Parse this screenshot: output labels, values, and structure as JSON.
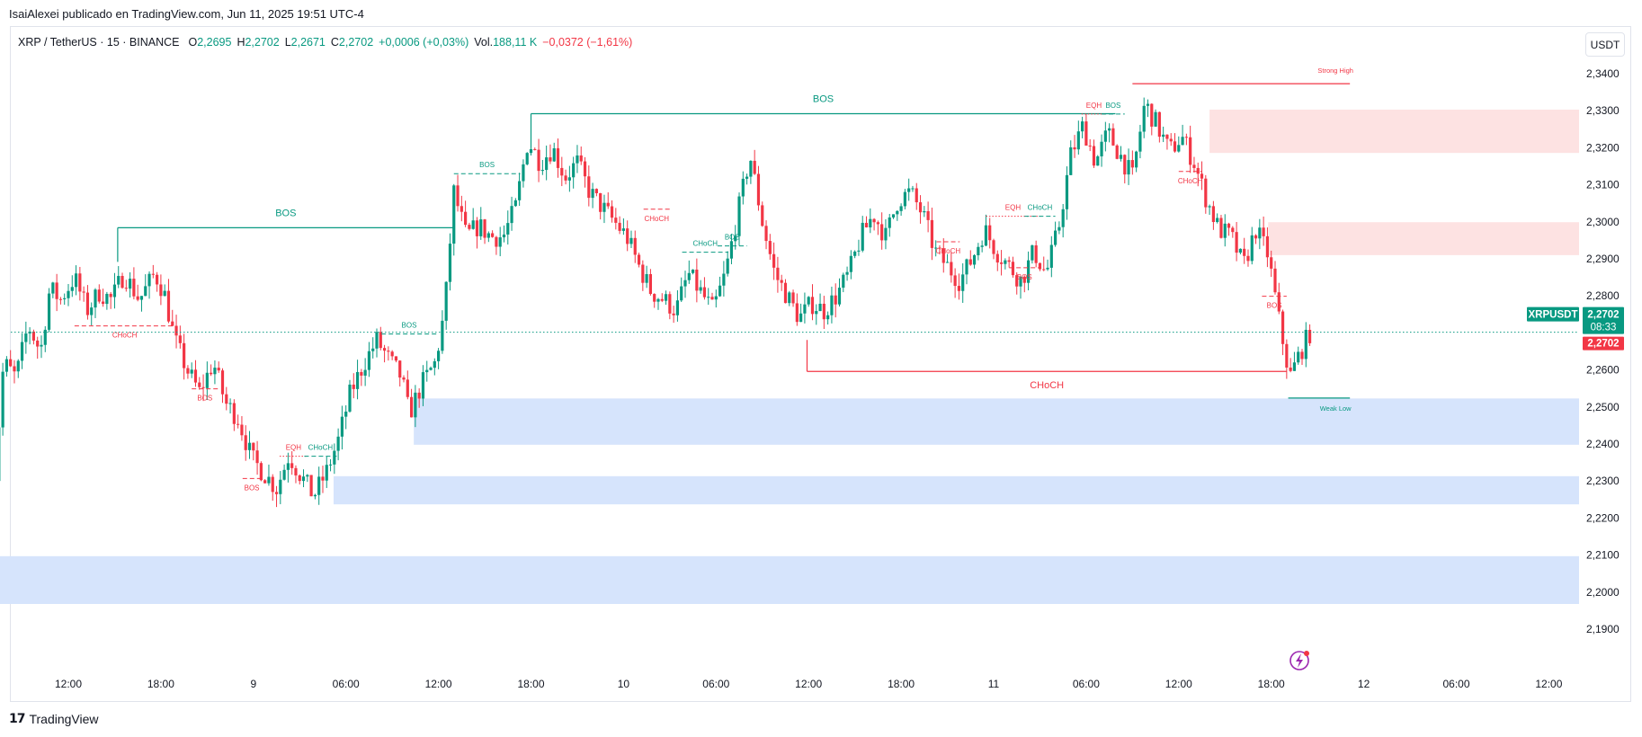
{
  "header": {
    "publish_line": "IsaiAlexei publicado en TradingView.com, Jun 11, 2025 19:51 UTC-4"
  },
  "legend": {
    "symbol": "XRP / TetherUS · 15 · BINANCE",
    "open_label": "O",
    "open": "2,2695",
    "high_label": "H",
    "high": "2,2702",
    "low_label": "L",
    "low": "2,2671",
    "close_label": "C",
    "close": "2,2702",
    "change": "+0,0006 (+0,03%)",
    "vol_label": "Vol.",
    "vol": "188,11 K",
    "day_change": "−0,0372 (−1,61%)"
  },
  "unit_button": "USDT",
  "footer": {
    "brand": "TradingView",
    "brand_mark": "17"
  },
  "price_tags": {
    "symbol_tag": "XRPUSDT",
    "last_price": "2,2702",
    "countdown": "08:33",
    "bid_price": "2,2702"
  },
  "colors": {
    "up": "#089981",
    "down": "#f23645",
    "demand_zone": "#d6e4fc",
    "supply_zone": "#fde2e2",
    "grid": "#ffffff"
  },
  "chart_data": {
    "type": "candlestick",
    "symbol": "XRPUSDT",
    "interval": "15",
    "y_axis": {
      "ticks": [
        "2,3400",
        "2,3300",
        "2,3200",
        "2,3100",
        "2,3000",
        "2,2900",
        "2,2800",
        "2,2600",
        "2,2500",
        "2,2400",
        "2,2300",
        "2,2200",
        "2,2100",
        "2,2000",
        "2,1900"
      ],
      "tick_values": [
        2.34,
        2.33,
        2.32,
        2.31,
        2.3,
        2.29,
        2.28,
        2.26,
        2.25,
        2.24,
        2.23,
        2.22,
        2.21,
        2.2,
        2.19
      ],
      "range": [
        2.178,
        2.355
      ]
    },
    "x_axis": {
      "ticks": [
        "12:00",
        "18:00",
        "9",
        "06:00",
        "12:00",
        "18:00",
        "10",
        "06:00",
        "12:00",
        "18:00",
        "11",
        "06:00",
        "12:00",
        "18:00",
        "12",
        "06:00",
        "12:00"
      ],
      "tick_hours": [
        12,
        18,
        24,
        30,
        36,
        42,
        48,
        54,
        60,
        66,
        72,
        78,
        84,
        90,
        96,
        102,
        108
      ],
      "range_hours": [
        7,
        111.5
      ]
    },
    "path_points": [
      [
        7.0,
        2.218
      ],
      [
        7.8,
        2.262
      ],
      [
        8.6,
        2.258
      ],
      [
        9.4,
        2.272
      ],
      [
        10.2,
        2.265
      ],
      [
        10.8,
        2.282
      ],
      [
        11.5,
        2.279
      ],
      [
        12.4,
        2.285
      ],
      [
        13.2,
        2.276
      ],
      [
        14.0,
        2.281
      ],
      [
        14.8,
        2.279
      ],
      [
        15.6,
        2.286
      ],
      [
        16.6,
        2.279
      ],
      [
        17.6,
        2.286
      ],
      [
        18.2,
        2.281
      ],
      [
        18.9,
        2.268
      ],
      [
        19.7,
        2.26
      ],
      [
        20.5,
        2.254
      ],
      [
        21.4,
        2.262
      ],
      [
        22.2,
        2.251
      ],
      [
        23.0,
        2.247
      ],
      [
        23.9,
        2.236
      ],
      [
        24.7,
        2.232
      ],
      [
        25.5,
        2.228
      ],
      [
        26.3,
        2.237
      ],
      [
        27.0,
        2.232
      ],
      [
        27.9,
        2.226
      ],
      [
        28.7,
        2.232
      ],
      [
        29.5,
        2.241
      ],
      [
        30.3,
        2.254
      ],
      [
        31.2,
        2.262
      ],
      [
        32.0,
        2.268
      ],
      [
        32.9,
        2.262
      ],
      [
        33.6,
        2.258
      ],
      [
        34.1,
        2.248
      ],
      [
        34.9,
        2.256
      ],
      [
        35.8,
        2.262
      ],
      [
        36.4,
        2.276
      ],
      [
        37.0,
        2.308
      ],
      [
        37.8,
        2.296
      ],
      [
        38.6,
        2.299
      ],
      [
        39.4,
        2.296
      ],
      [
        40.2,
        2.296
      ],
      [
        41.0,
        2.304
      ],
      [
        41.8,
        2.322
      ],
      [
        42.6,
        2.316
      ],
      [
        43.4,
        2.32
      ],
      [
        44.2,
        2.312
      ],
      [
        45.0,
        2.316
      ],
      [
        45.8,
        2.308
      ],
      [
        46.6,
        2.304
      ],
      [
        47.4,
        2.3
      ],
      [
        48.2,
        2.296
      ],
      [
        49.0,
        2.288
      ],
      [
        49.8,
        2.281
      ],
      [
        50.6,
        2.279
      ],
      [
        51.4,
        2.276
      ],
      [
        52.2,
        2.286
      ],
      [
        53.0,
        2.281
      ],
      [
        53.8,
        2.276
      ],
      [
        54.6,
        2.286
      ],
      [
        55.4,
        2.302
      ],
      [
        56.2,
        2.318
      ],
      [
        57.0,
        2.3
      ],
      [
        57.8,
        2.286
      ],
      [
        58.6,
        2.28
      ],
      [
        59.4,
        2.274
      ],
      [
        60.2,
        2.278
      ],
      [
        61.0,
        2.276
      ],
      [
        61.8,
        2.28
      ],
      [
        62.6,
        2.286
      ],
      [
        63.4,
        2.296
      ],
      [
        64.2,
        2.302
      ],
      [
        65.0,
        2.296
      ],
      [
        65.8,
        2.306
      ],
      [
        66.6,
        2.308
      ],
      [
        67.4,
        2.302
      ],
      [
        68.2,
        2.292
      ],
      [
        69.0,
        2.288
      ],
      [
        69.8,
        2.284
      ],
      [
        70.6,
        2.29
      ],
      [
        71.4,
        2.298
      ],
      [
        72.2,
        2.292
      ],
      [
        73.0,
        2.288
      ],
      [
        73.8,
        2.284
      ],
      [
        74.6,
        2.292
      ],
      [
        75.4,
        2.286
      ],
      [
        76.2,
        2.298
      ],
      [
        77.0,
        2.318
      ],
      [
        77.8,
        2.326
      ],
      [
        78.6,
        2.316
      ],
      [
        79.4,
        2.324
      ],
      [
        80.2,
        2.318
      ],
      [
        81.0,
        2.312
      ],
      [
        81.8,
        2.332
      ],
      [
        82.6,
        2.326
      ],
      [
        83.4,
        2.319
      ],
      [
        84.2,
        2.323
      ],
      [
        85.0,
        2.316
      ],
      [
        85.8,
        2.306
      ],
      [
        86.6,
        2.298
      ],
      [
        87.4,
        2.296
      ],
      [
        88.2,
        2.288
      ],
      [
        89.0,
        2.298
      ],
      [
        89.8,
        2.291
      ],
      [
        90.6,
        2.271
      ],
      [
        91.2,
        2.258
      ],
      [
        91.9,
        2.265
      ],
      [
        92.5,
        2.27
      ]
    ],
    "zones": [
      {
        "kind": "demand",
        "x0": 34.4,
        "y_top": 2.2523,
        "y_bot": 2.2398
      },
      {
        "kind": "demand",
        "x0": 29.2,
        "y_top": 2.2313,
        "y_bot": 2.2237
      },
      {
        "kind": "demand",
        "x0": 7.0,
        "y_top": 2.2097,
        "y_bot": 2.1968
      },
      {
        "kind": "supply",
        "x0": 86.0,
        "y_top": 2.3303,
        "y_bot": 2.3186
      },
      {
        "kind": "supply",
        "x0": 89.8,
        "y_top": 2.2999,
        "y_bot": 2.291
      }
    ],
    "structure": [
      {
        "label": "BOS",
        "color": "up",
        "style": "solid",
        "x0": 15.2,
        "x1": 37.0,
        "y": 2.2984,
        "size": "large"
      },
      {
        "label": "BOS",
        "color": "up",
        "style": "solid",
        "x0": 42.0,
        "x1": 79.9,
        "y": 2.3292,
        "size": "large"
      },
      {
        "label": "CHoCH",
        "color": "down",
        "style": "solid",
        "x0": 59.9,
        "x1": 91.0,
        "y": 2.2596,
        "size": "large"
      },
      {
        "label": "BOS",
        "color": "up",
        "style": "dashed",
        "x0": 37.0,
        "x1": 41.3,
        "y": 2.313,
        "size": "small"
      },
      {
        "label": "BOS",
        "color": "up",
        "style": "dashed",
        "x0": 32.3,
        "x1": 35.9,
        "y": 2.2697,
        "size": "small"
      },
      {
        "label": "CHoCH",
        "color": "down",
        "style": "dashed",
        "x0": 12.4,
        "x1": 18.9,
        "y": 2.2719,
        "size": "small"
      },
      {
        "label": "BOS",
        "color": "down",
        "style": "dashed",
        "x0": 20.0,
        "x1": 21.7,
        "y": 2.2549,
        "size": "small"
      },
      {
        "label": "BOS",
        "color": "down",
        "style": "dashed",
        "x0": 23.3,
        "x1": 24.5,
        "y": 2.2307,
        "size": "small"
      },
      {
        "label": "EQH",
        "color": "down",
        "style": "dotted",
        "x0": 25.7,
        "x1": 27.5,
        "y": 2.2367,
        "size": "small"
      },
      {
        "label": "CHoCH",
        "color": "up",
        "style": "dashed",
        "x0": 27.3,
        "x1": 29.4,
        "y": 2.2367,
        "size": "small"
      },
      {
        "label": "CHoCH",
        "color": "down",
        "style": "dashed",
        "x0": 49.3,
        "x1": 51.0,
        "y": 2.3034,
        "size": "small"
      },
      {
        "label": "CHoCH",
        "color": "up",
        "style": "dashed",
        "x0": 51.8,
        "x1": 54.8,
        "y": 2.2918,
        "size": "small"
      },
      {
        "label": "BOS",
        "color": "up",
        "style": "dashed",
        "x0": 54.1,
        "x1": 56.0,
        "y": 2.2935,
        "size": "small"
      },
      {
        "label": "CHoCH",
        "color": "down",
        "style": "dashed",
        "x0": 68.3,
        "x1": 69.8,
        "y": 2.2946,
        "size": "small"
      },
      {
        "label": "EQH",
        "color": "down",
        "style": "dotted",
        "x0": 71.5,
        "x1": 75.0,
        "y": 2.3015,
        "size": "small"
      },
      {
        "label": "CHoCH",
        "color": "up",
        "style": "dashed",
        "x0": 74.0,
        "x1": 76.0,
        "y": 2.3015,
        "size": "small"
      },
      {
        "label": "BOS",
        "color": "down",
        "style": "dashed",
        "x0": 73.0,
        "x1": 75.0,
        "y": 2.2876,
        "size": "small"
      },
      {
        "label": "EQH",
        "color": "down",
        "style": "dotted",
        "x0": 77.7,
        "x1": 79.3,
        "y": 2.3291,
        "size": "small"
      },
      {
        "label": "BOS",
        "color": "up",
        "style": "dashed",
        "x0": 79.0,
        "x1": 80.5,
        "y": 2.3291,
        "size": "small"
      },
      {
        "label": "CHoCH",
        "color": "down",
        "style": "dashed",
        "x0": 84.0,
        "x1": 85.5,
        "y": 2.3136,
        "size": "small"
      },
      {
        "label": "BOS",
        "color": "down",
        "style": "dashed",
        "x0": 89.4,
        "x1": 91.0,
        "y": 2.2799,
        "size": "small"
      }
    ],
    "swing_lines": [
      {
        "label": "Strong High",
        "color": "down",
        "x0": 81.0,
        "x1": 95.1,
        "y": 2.3373
      },
      {
        "label": "Weak Low",
        "color": "up",
        "x0": 91.1,
        "x1": 95.1,
        "y": 2.2524
      }
    ],
    "last_price": 2.2702
  }
}
